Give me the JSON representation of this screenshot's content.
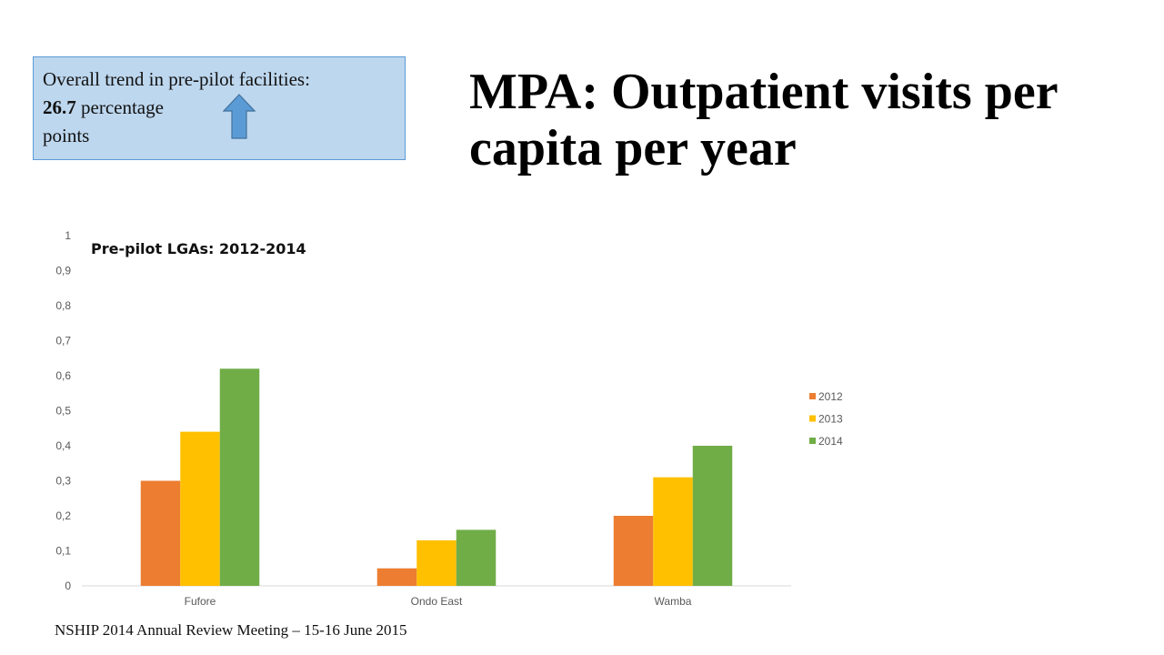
{
  "callout": {
    "line1": "Overall trend in pre-pilot facilities:",
    "value": "26.7",
    "line2_rest": " percentage",
    "line3": "points",
    "arrow_icon": "up-arrow-icon",
    "arrow_color": "#5b9bd5",
    "background": "#bdd7ee"
  },
  "slide_title": "MPA: Outpatient visits per capita per year",
  "footer": "NSHIP 2014 Annual Review Meeting – 15-16 June 2015",
  "chart_data": {
    "type": "bar",
    "title": "Pre-pilot LGAs: 2012-2014",
    "categories": [
      "Fufore",
      "Ondo East",
      "Wamba"
    ],
    "series": [
      {
        "name": "2012",
        "color": "#ed7d31",
        "values": [
          0.3,
          0.05,
          0.2
        ]
      },
      {
        "name": "2013",
        "color": "#ffc000",
        "values": [
          0.44,
          0.13,
          0.31
        ]
      },
      {
        "name": "2014",
        "color": "#70ad47",
        "values": [
          0.62,
          0.16,
          0.4
        ]
      }
    ],
    "ylim": [
      0,
      1
    ],
    "yticks": [
      "0",
      "0,1",
      "0,2",
      "0,3",
      "0,4",
      "0,5",
      "0,6",
      "0,7",
      "0,8",
      "0,9",
      "1"
    ],
    "xlabel": "",
    "ylabel": "",
    "grid": false,
    "legend_position": "right"
  }
}
